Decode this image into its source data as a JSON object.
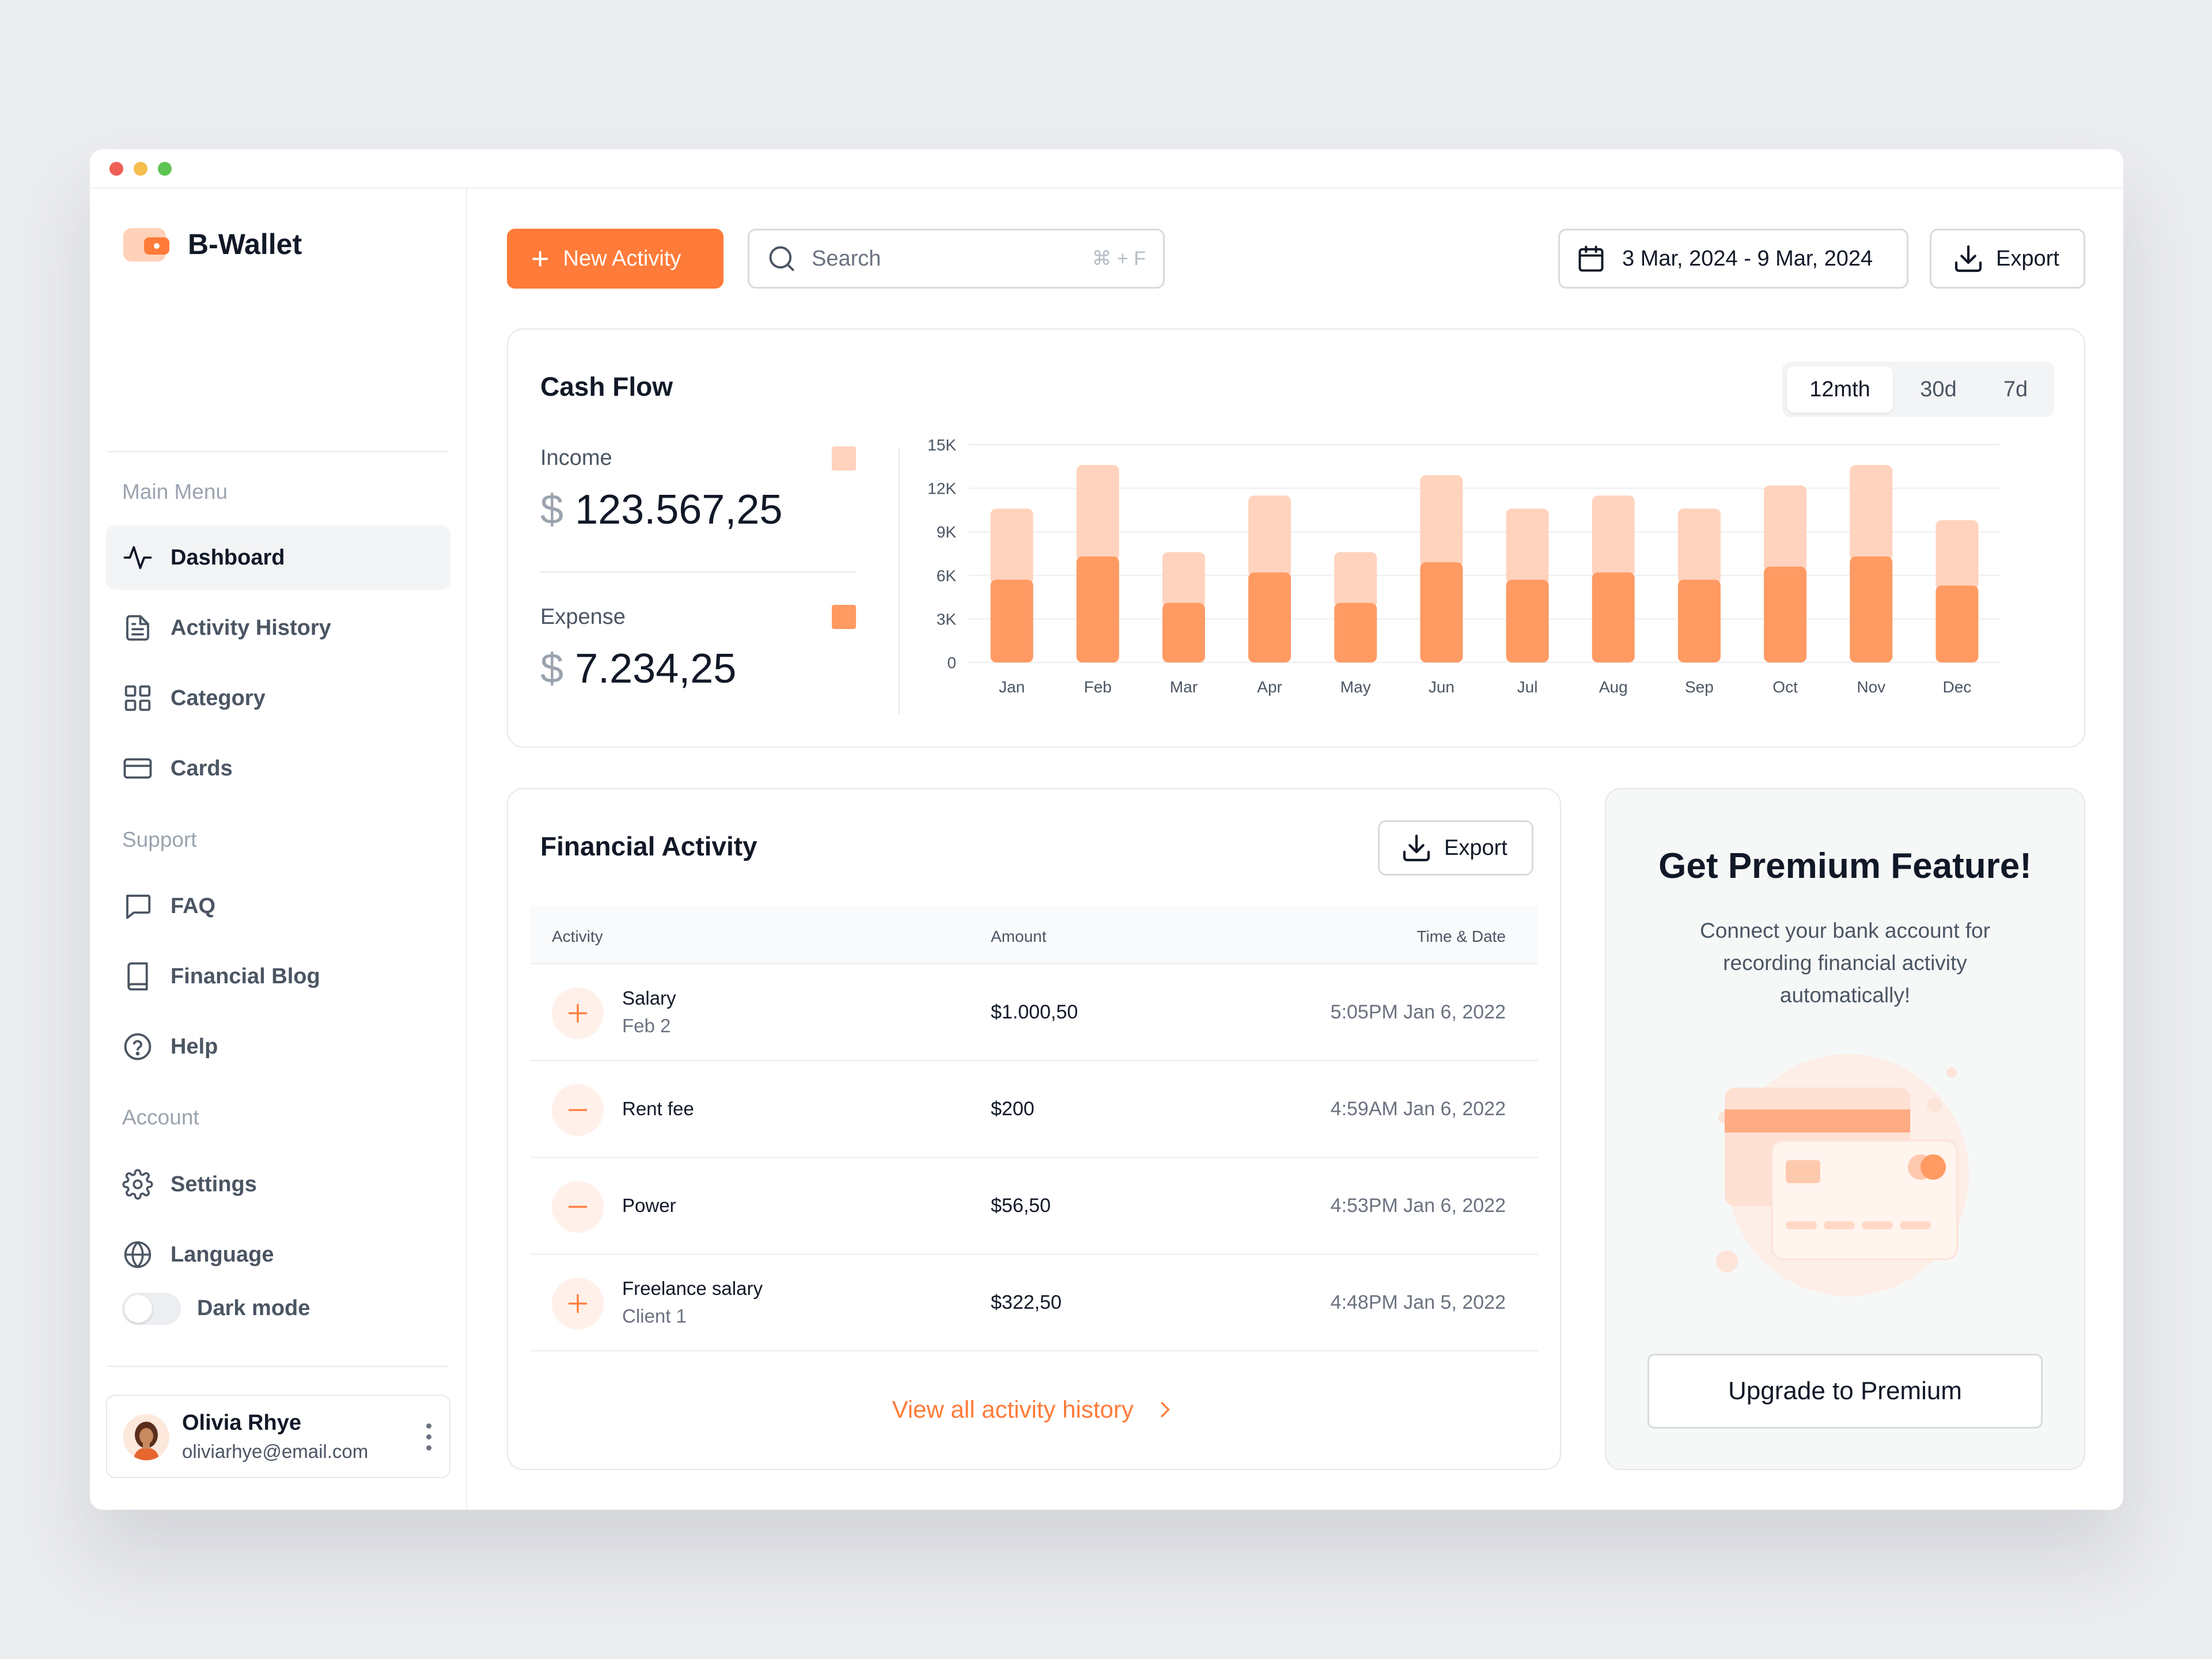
{
  "app": {
    "brand": "B-Wallet"
  },
  "colors": {
    "accent": "#ff7b39",
    "income": "#ffd3bd",
    "expense": "#ff9a63"
  },
  "sidebar": {
    "main_menu_label": "Main Menu",
    "main_items": [
      {
        "label": "Dashboard",
        "icon": "activity-icon",
        "active": true
      },
      {
        "label": "Activity History",
        "icon": "document-icon"
      },
      {
        "label": "Category",
        "icon": "grid-icon"
      },
      {
        "label": "Cards",
        "icon": "card-icon"
      }
    ],
    "support_label": "Support",
    "support_items": [
      {
        "label": "FAQ",
        "icon": "message-icon"
      },
      {
        "label": "Financial Blog",
        "icon": "book-icon"
      },
      {
        "label": "Help",
        "icon": "help-icon"
      }
    ],
    "account_label": "Account",
    "account_items": [
      {
        "label": "Settings",
        "icon": "gear-icon"
      },
      {
        "label": "Language",
        "icon": "globe-icon"
      }
    ],
    "dark_mode_label": "Dark mode",
    "dark_mode_on": false,
    "user": {
      "name": "Olivia Rhye",
      "email": "oliviarhye@email.com"
    }
  },
  "toolbar": {
    "new_activity_label": "New Activity",
    "search_placeholder": "Search",
    "search_shortcut": "⌘ + F",
    "date_range": "3 Mar, 2024 - 9 Mar, 2024",
    "export_label": "Export"
  },
  "cashflow": {
    "title": "Cash Flow",
    "periods": [
      "12mth",
      "30d",
      "7d"
    ],
    "selected_period": "12mth",
    "income_label": "Income",
    "income_currency": "$",
    "income_value": "123.567,25",
    "expense_label": "Expense",
    "expense_currency": "$",
    "expense_value": "7.234,25"
  },
  "chart_data": {
    "type": "bar",
    "stacked": true,
    "categories": [
      "Jan",
      "Feb",
      "Mar",
      "Apr",
      "May",
      "Jun",
      "Jul",
      "Aug",
      "Sep",
      "Oct",
      "Nov",
      "Dec"
    ],
    "series": [
      {
        "name": "Expense",
        "values": [
          5700,
          7300,
          4100,
          6200,
          4100,
          6900,
          5700,
          6200,
          5700,
          6600,
          7300,
          5300
        ]
      },
      {
        "name": "Income",
        "values": [
          4900,
          6300,
          3500,
          5300,
          3500,
          6000,
          4900,
          5300,
          4900,
          5600,
          6300,
          4500
        ]
      }
    ],
    "yticks": [
      "0",
      "3K",
      "6K",
      "9K",
      "12K",
      "15K"
    ],
    "ylim": [
      0,
      15000
    ],
    "grid": true
  },
  "activity": {
    "title": "Financial Activity",
    "export_label": "Export",
    "columns": [
      "Activity",
      "Amount",
      "Time & Date"
    ],
    "rows": [
      {
        "type": "plus",
        "name": "Salary",
        "sub": "Feb 2",
        "amount": "$1.000,50",
        "date": "5:05PM Jan 6, 2022"
      },
      {
        "type": "minus",
        "name": "Rent fee",
        "sub": "",
        "amount": "$200",
        "date": "4:59AM Jan 6, 2022"
      },
      {
        "type": "minus",
        "name": "Power",
        "sub": "",
        "amount": "$56,50",
        "date": "4:53PM Jan 6, 2022"
      },
      {
        "type": "plus",
        "name": "Freelance salary",
        "sub": "Client 1",
        "amount": "$322,50",
        "date": "4:48PM Jan 5, 2022"
      }
    ],
    "view_all_label": "View all activity history"
  },
  "premium": {
    "title": "Get Premium Feature!",
    "description": "Connect your bank account for recording financial activity automatically!",
    "button_label": "Upgrade to Premium"
  }
}
